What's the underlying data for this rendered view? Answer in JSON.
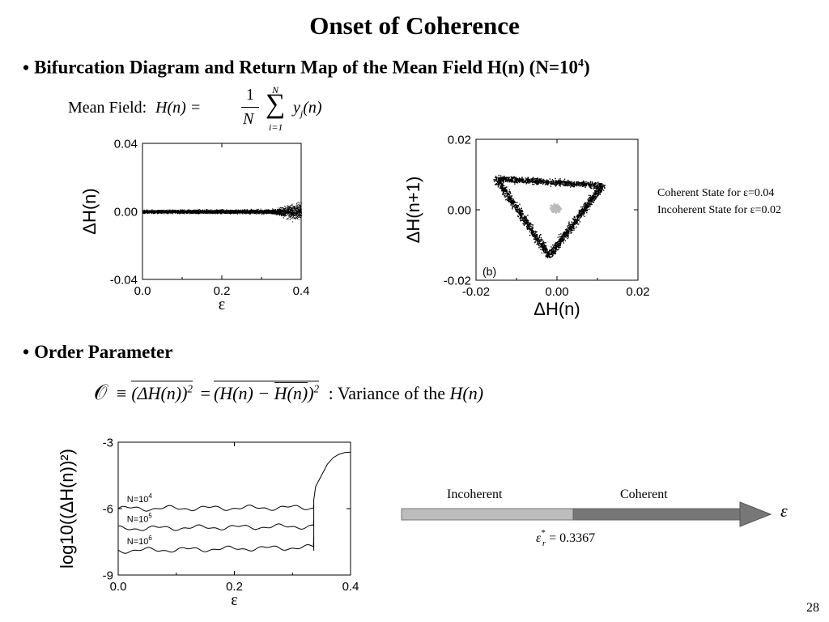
{
  "slide": {
    "title": "Onset of Coherence",
    "page_number": "28",
    "bullet1": {
      "symbol": "•",
      "text": "Bifurcation Diagram and Return Map of the Mean Field H(n) (N=10",
      "exp": "4",
      "close": ")"
    },
    "mean_field": {
      "label": "Mean Field:",
      "lhs": "H(n) =",
      "frac_num": "1",
      "frac_den": "N",
      "sum_upper": "N",
      "sum_lower": "i=1",
      "summand": "y",
      "summand_sub": "j",
      "summand_arg": "(n)"
    },
    "bullet2": {
      "symbol": "•",
      "text": "Order Parameter"
    },
    "order_param": {
      "symbol": "𝒪",
      "equiv": "≡",
      "part1": "(ΔH(n))",
      "exp1": "2",
      "eq": "=",
      "part2a": "(H(n) − ",
      "part2b": "H(n)",
      "part2c": ")",
      "exp2": "2",
      "desc": ": Variance of the",
      "desc_var": "H(n)"
    },
    "legend_note": {
      "line1": "Coherent State for ε=0.04",
      "line2": "Incoherent State for ε=0.02"
    },
    "arrow": {
      "left_label": "Incoherent",
      "right_label": "Coherent",
      "axis_symbol": "ε",
      "critical_lhs": "ε",
      "critical_sup": "*",
      "critical_sub": "r",
      "critical_rhs": "= 0.3367",
      "colors": {
        "incoherent": "#bdbdbd",
        "coherent": "#777777"
      }
    }
  },
  "chart_data": [
    {
      "id": "bifurcation",
      "type": "scatter",
      "xlabel": "ε",
      "ylabel": "ΔH(n)",
      "xlim": [
        0.0,
        0.4
      ],
      "ylim": [
        -0.04,
        0.04
      ],
      "xticks": [
        "0.0",
        "0.2",
        "0.4"
      ],
      "yticks": [
        "0.04",
        "0.00",
        "-0.04"
      ],
      "band": [
        {
          "x": 0.0,
          "spread": 0.002
        },
        {
          "x": 0.32,
          "spread": 0.0025
        },
        {
          "x": 0.34,
          "spread": 0.004
        },
        {
          "x": 0.36,
          "spread": 0.008
        },
        {
          "x": 0.38,
          "spread": 0.011
        },
        {
          "x": 0.4,
          "spread": 0.011
        }
      ]
    },
    {
      "id": "return-map",
      "type": "scatter",
      "xlabel": "ΔH(n)",
      "ylabel": "ΔH(n+1)",
      "xlim": [
        -0.02,
        0.02
      ],
      "ylim": [
        -0.02,
        0.02
      ],
      "xticks": [
        "-0.02",
        "0.00",
        "0.02"
      ],
      "yticks": [
        "0.02",
        "0.00",
        "-0.02"
      ],
      "panel_label": "(b)",
      "series": [
        {
          "name": "Coherent State for ε=0.04",
          "color": "#000000",
          "shape": "triangular loop",
          "vertices": [
            [
              -0.015,
              0.009
            ],
            [
              0.011,
              0.007
            ],
            [
              -0.002,
              -0.013
            ]
          ],
          "width": 0.0025
        },
        {
          "name": "Incoherent State for ε=0.02",
          "color": "#bbbbbb",
          "shape": "blob",
          "center": [
            -0.0005,
            0.0005
          ],
          "radius": 0.0025
        }
      ]
    },
    {
      "id": "order-parameter",
      "type": "line",
      "xlabel": "ε",
      "ylabel": "log10((ΔH(n))²)",
      "xlim": [
        0.0,
        0.4
      ],
      "ylim": [
        -9,
        -3
      ],
      "xticks": [
        "0.0",
        "0.2",
        "0.4"
      ],
      "yticks": [
        "-3",
        "-6",
        "-9"
      ],
      "critical_x": 0.3367,
      "series": [
        {
          "name": "N=10",
          "exp": "4",
          "level": -6.0,
          "jump_top": -5.8
        },
        {
          "name": "N=10",
          "exp": "5",
          "level": -6.9,
          "jump_top": -6.5
        },
        {
          "name": "N=10",
          "exp": "6",
          "level": -7.9,
          "jump_top": -7.3
        }
      ],
      "coherent_branch": [
        [
          0.3367,
          -5.6
        ],
        [
          0.34,
          -5.0
        ],
        [
          0.35,
          -4.5
        ],
        [
          0.36,
          -4.0
        ],
        [
          0.37,
          -3.7
        ],
        [
          0.38,
          -3.55
        ],
        [
          0.39,
          -3.47
        ],
        [
          0.4,
          -3.45
        ]
      ]
    }
  ]
}
